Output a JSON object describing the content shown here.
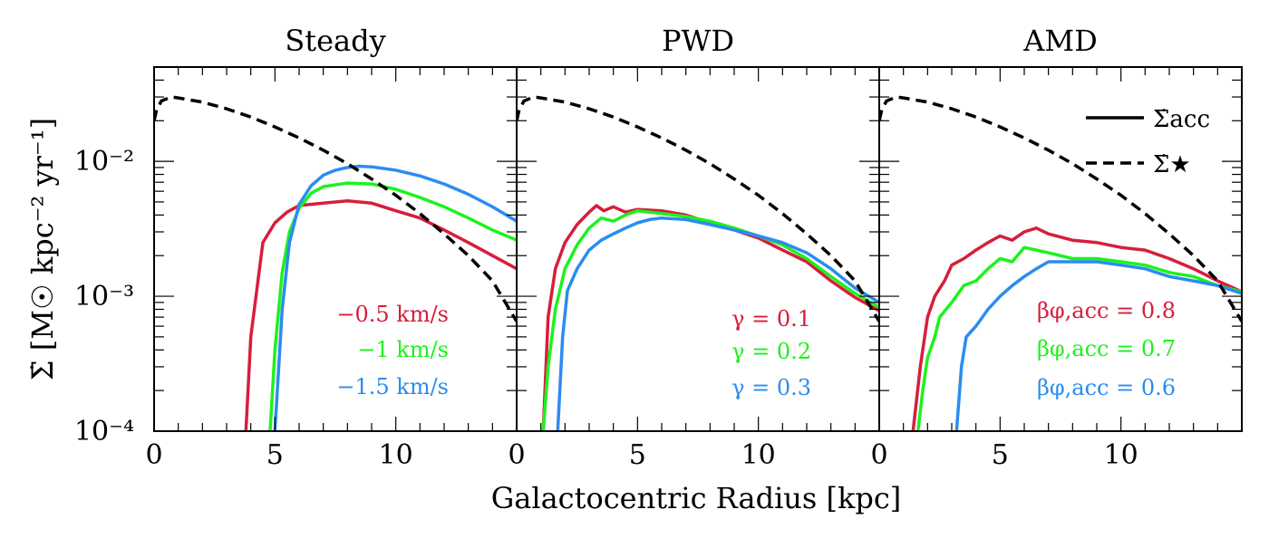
{
  "figure": {
    "xlabel": "Galactocentric Radius [kpc]",
    "ylabel": "Σ̇ [M☉ kpc⁻² yr⁻¹]"
  },
  "legend": [
    {
      "label": "Σ̇acc",
      "style": "solid"
    },
    {
      "label": "Σ̇★",
      "style": "dashed"
    }
  ],
  "colors": {
    "red": "#d61e3c",
    "green": "#1df21d",
    "blue": "#2b8cf0",
    "black": "#000000"
  },
  "chart_data": [
    {
      "type": "line",
      "title": "Steady",
      "xlim": [
        0,
        15
      ],
      "ylim": [
        0.0001,
        0.05
      ],
      "yscale": "log",
      "xticks": [
        "0",
        "5",
        "10"
      ],
      "yticks": [
        "10⁻²",
        "10⁻³",
        "10⁻⁴"
      ],
      "series": [
        {
          "name": "−0.5 km/s",
          "color": "red",
          "style": "solid",
          "x": [
            3.8,
            4.0,
            4.5,
            5.0,
            5.5,
            6.0,
            7.0,
            8.0,
            9.0,
            10.0,
            11.0,
            12.0,
            13.0,
            14.0,
            15.0
          ],
          "y": [
            0.0001,
            0.0005,
            0.0025,
            0.0035,
            0.0042,
            0.0047,
            0.0049,
            0.0051,
            0.0049,
            0.0043,
            0.0038,
            0.0031,
            0.0025,
            0.002,
            0.0016
          ]
        },
        {
          "name": "−1 km/s",
          "color": "green",
          "style": "solid",
          "x": [
            4.8,
            5.0,
            5.3,
            5.6,
            6.0,
            6.5,
            7.0,
            8.0,
            9.0,
            10.0,
            11.0,
            12.0,
            13.0,
            14.0,
            15.0
          ],
          "y": [
            0.0001,
            0.0004,
            0.0015,
            0.003,
            0.0045,
            0.0058,
            0.0065,
            0.0069,
            0.0068,
            0.0062,
            0.0054,
            0.0046,
            0.0038,
            0.0031,
            0.0026
          ]
        },
        {
          "name": "−1.5 km/s",
          "color": "blue",
          "style": "solid",
          "x": [
            5.0,
            5.3,
            5.6,
            6.0,
            6.5,
            7.0,
            7.5,
            8.0,
            8.5,
            9.0,
            10.0,
            11.0,
            12.0,
            13.0,
            14.0,
            15.0
          ],
          "y": [
            0.0001,
            0.0008,
            0.0025,
            0.0048,
            0.0066,
            0.0079,
            0.0086,
            0.009,
            0.0092,
            0.0091,
            0.0086,
            0.0078,
            0.0068,
            0.0057,
            0.0046,
            0.0036
          ]
        },
        {
          "name": "",
          "color": "black",
          "style": "dashed",
          "x": [
            0.0,
            0.1,
            0.3,
            0.7,
            1.0,
            2.0,
            3.0,
            4.0,
            5.0,
            6.0,
            7.0,
            8.0,
            9.0,
            10.0,
            11.0,
            12.0,
            13.0,
            14.0,
            15.0
          ],
          "y": [
            0.02,
            0.024,
            0.028,
            0.03,
            0.0295,
            0.0275,
            0.0245,
            0.0213,
            0.018,
            0.0149,
            0.0121,
            0.0096,
            0.0074,
            0.0056,
            0.0041,
            0.0029,
            0.002,
            0.0013,
            0.00065
          ]
        }
      ],
      "annotations": [
        {
          "text": "−0.5 km/s",
          "color": "red"
        },
        {
          "text": "−1 km/s",
          "color": "green"
        },
        {
          "text": "−1.5 km/s",
          "color": "blue"
        }
      ]
    },
    {
      "type": "line",
      "title": "PWD",
      "xlim": [
        0,
        15
      ],
      "ylim": [
        0.0001,
        0.05
      ],
      "yscale": "log",
      "xticks": [
        "0",
        "5",
        "10"
      ],
      "yticks": [],
      "series": [
        {
          "name": "γ = 0.1",
          "color": "red",
          "style": "solid",
          "x": [
            1.1,
            1.3,
            1.6,
            2.0,
            2.5,
            3.0,
            3.3,
            3.6,
            4.0,
            4.5,
            5.0,
            6.0,
            7.0,
            8.0,
            9.0,
            10.0,
            11.0,
            12.0,
            13.0,
            14.0,
            15.0
          ],
          "y": [
            0.0001,
            0.0007,
            0.0016,
            0.0025,
            0.0034,
            0.0042,
            0.0047,
            0.0043,
            0.0046,
            0.0042,
            0.0044,
            0.0043,
            0.004,
            0.0035,
            0.0031,
            0.0027,
            0.0022,
            0.0018,
            0.0013,
            0.00098,
            0.00078
          ]
        },
        {
          "name": "γ = 0.2",
          "color": "green",
          "style": "solid",
          "x": [
            1.1,
            1.3,
            1.6,
            2.0,
            2.5,
            3.0,
            3.5,
            4.0,
            4.5,
            5.0,
            6.0,
            7.0,
            8.0,
            9.0,
            10.0,
            11.0,
            12.0,
            13.0,
            14.0,
            15.0
          ],
          "y": [
            0.0001,
            0.0003,
            0.0008,
            0.0016,
            0.0024,
            0.0032,
            0.0038,
            0.0036,
            0.004,
            0.0043,
            0.0041,
            0.0039,
            0.0036,
            0.0032,
            0.0028,
            0.0024,
            0.0019,
            0.0014,
            0.00105,
            0.00083
          ]
        },
        {
          "name": "γ = 0.3",
          "color": "blue",
          "style": "solid",
          "x": [
            1.7,
            1.9,
            2.1,
            2.5,
            3.0,
            3.5,
            4.0,
            4.5,
            5.0,
            5.5,
            6.0,
            7.0,
            8.0,
            9.0,
            10.0,
            11.0,
            12.0,
            13.0,
            14.0,
            15.0
          ],
          "y": [
            0.0001,
            0.0005,
            0.0011,
            0.0016,
            0.0022,
            0.0026,
            0.0029,
            0.0032,
            0.0035,
            0.0037,
            0.0038,
            0.0037,
            0.0034,
            0.0031,
            0.0028,
            0.0025,
            0.0021,
            0.0016,
            0.00115,
            0.0009
          ]
        },
        {
          "name": "",
          "color": "black",
          "style": "dashed",
          "x": [
            0.0,
            0.1,
            0.3,
            0.7,
            1.0,
            2.0,
            3.0,
            4.0,
            5.0,
            6.0,
            7.0,
            8.0,
            9.0,
            10.0,
            11.0,
            12.0,
            13.0,
            14.0,
            15.0
          ],
          "y": [
            0.02,
            0.024,
            0.028,
            0.03,
            0.0295,
            0.0275,
            0.0245,
            0.0213,
            0.018,
            0.0149,
            0.0121,
            0.0096,
            0.0074,
            0.0056,
            0.0041,
            0.0029,
            0.002,
            0.0013,
            0.00065
          ]
        }
      ],
      "annotations": [
        {
          "text": "γ = 0.1",
          "color": "red"
        },
        {
          "text": "γ = 0.2",
          "color": "green"
        },
        {
          "text": "γ = 0.3",
          "color": "blue"
        }
      ]
    },
    {
      "type": "line",
      "title": "AMD",
      "xlim": [
        0,
        15
      ],
      "ylim": [
        0.0001,
        0.05
      ],
      "yscale": "log",
      "xticks": [
        "0",
        "5",
        "10"
      ],
      "yticks": [],
      "series": [
        {
          "name": "βφ,acc = 0.8",
          "color": "red",
          "style": "solid",
          "x": [
            1.4,
            1.7,
            2.0,
            2.3,
            2.7,
            3.0,
            3.5,
            4.0,
            4.5,
            5.0,
            5.5,
            6.0,
            6.5,
            7.0,
            8.0,
            9.0,
            10.0,
            11.0,
            12.0,
            13.0,
            14.0,
            15.0
          ],
          "y": [
            0.0001,
            0.0003,
            0.0007,
            0.001,
            0.0013,
            0.0017,
            0.0019,
            0.0022,
            0.0025,
            0.0028,
            0.0026,
            0.003,
            0.0032,
            0.0029,
            0.0026,
            0.0025,
            0.0023,
            0.0022,
            0.0019,
            0.0016,
            0.0013,
            0.00108
          ]
        },
        {
          "name": "βφ,acc = 0.7",
          "color": "green",
          "style": "solid",
          "x": [
            1.6,
            1.8,
            2.0,
            2.3,
            2.5,
            3.0,
            3.5,
            4.0,
            4.5,
            5.0,
            5.5,
            6.0,
            6.5,
            7.0,
            8.0,
            9.0,
            10.0,
            11.0,
            12.0,
            13.0,
            14.0,
            15.0
          ],
          "y": [
            0.0001,
            0.0002,
            0.00035,
            0.0005,
            0.0007,
            0.0009,
            0.0012,
            0.0013,
            0.0016,
            0.0019,
            0.0018,
            0.0023,
            0.0022,
            0.0021,
            0.0019,
            0.0019,
            0.0018,
            0.0017,
            0.0015,
            0.0014,
            0.0012,
            0.00108
          ]
        },
        {
          "name": "βφ,acc = 0.6",
          "color": "blue",
          "style": "solid",
          "x": [
            3.2,
            3.4,
            3.6,
            4.0,
            4.5,
            5.0,
            5.5,
            6.0,
            6.5,
            7.0,
            8.0,
            9.0,
            10.0,
            11.0,
            12.0,
            13.0,
            14.0,
            15.0
          ],
          "y": [
            0.0001,
            0.0003,
            0.0005,
            0.0006,
            0.0008,
            0.001,
            0.0012,
            0.0014,
            0.0016,
            0.0018,
            0.0018,
            0.0018,
            0.0017,
            0.0016,
            0.0014,
            0.0013,
            0.0012,
            0.00105
          ]
        },
        {
          "name": "",
          "color": "black",
          "style": "dashed",
          "x": [
            0.0,
            0.1,
            0.3,
            0.7,
            1.0,
            2.0,
            3.0,
            4.0,
            5.0,
            6.0,
            7.0,
            8.0,
            9.0,
            10.0,
            11.0,
            12.0,
            13.0,
            14.0,
            15.0
          ],
          "y": [
            0.02,
            0.024,
            0.028,
            0.03,
            0.0295,
            0.0275,
            0.0245,
            0.0213,
            0.018,
            0.0149,
            0.0121,
            0.0096,
            0.0074,
            0.0056,
            0.0041,
            0.0029,
            0.002,
            0.0013,
            0.00065
          ]
        }
      ],
      "annotations": [
        {
          "text": "βφ,acc = 0.8",
          "color": "red"
        },
        {
          "text": "βφ,acc = 0.7",
          "color": "green"
        },
        {
          "text": "βφ,acc = 0.6",
          "color": "blue"
        }
      ]
    }
  ]
}
